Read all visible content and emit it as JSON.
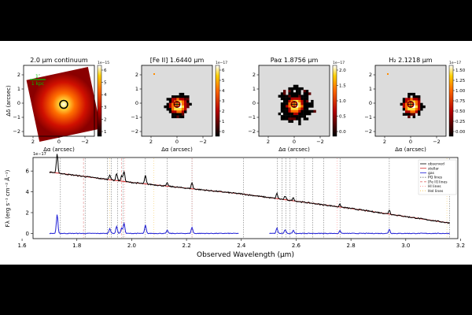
{
  "panels": [
    {
      "title": "2.0 μm continuum",
      "cbar_exp": "1e−15",
      "cbar_ticks": [
        "1",
        "2",
        "3",
        "4",
        "5",
        "6"
      ]
    },
    {
      "title": "[Fe II] 1.6440 μm",
      "cbar_exp": "1e−17",
      "cbar_ticks": [
        "0",
        "1",
        "2",
        "3",
        "4",
        "5",
        "6"
      ]
    },
    {
      "title": "Paα 1.8756 μm",
      "cbar_exp": "1e−17",
      "cbar_ticks": [
        "0.0",
        "0.5",
        "1.0",
        "1.5",
        "2.0"
      ]
    },
    {
      "title": "H₂ 2.1218 μm",
      "cbar_exp": "1e−17",
      "cbar_ticks": [
        "0.00",
        "0.25",
        "0.50",
        "0.75",
        "1.00",
        "1.25",
        "1.50"
      ]
    }
  ],
  "map_axes": {
    "xlabel": "Δα (arcsec)",
    "ylabel": "Δδ (arcsec)",
    "xticks": [
      "2",
      "0",
      "−2"
    ],
    "yticks": [
      "2",
      "1",
      "0",
      "−1",
      "−2"
    ]
  },
  "scalebar": {
    "top": "1″",
    "bottom": "1 kpc"
  },
  "chart_data": {
    "type": "line",
    "xlabel": "Observed Wavelength (μm)",
    "ylabel": "Fλ (erg s⁻¹ cm⁻² Å⁻¹)",
    "y_exponent": "1e−17",
    "xlim": [
      1.64,
      3.19
    ],
    "ylim": [
      -0.5,
      7.3
    ],
    "xticks": [
      "1.6",
      "1.8",
      "2.0",
      "2.2",
      "2.4",
      "2.6",
      "2.8",
      "3.0",
      "3.2"
    ],
    "yticks": [
      "0",
      "2",
      "4",
      "6"
    ],
    "legend": [
      "observed",
      "stellar",
      "gas",
      "PQ lines",
      "[Fe II] lines",
      "HI lines",
      "HeI lines"
    ],
    "series": [
      {
        "name": "observed",
        "color": "#000000"
      },
      {
        "name": "stellar",
        "color": "#d62728"
      },
      {
        "name": "gas",
        "color": "#1f1fd6"
      }
    ],
    "stellar_continuum": {
      "x": [
        1.7,
        2.0,
        2.4,
        2.8,
        3.16
      ],
      "y": [
        5.9,
        4.9,
        3.8,
        2.4,
        1.0
      ]
    },
    "gap": [
      2.39,
      2.5
    ],
    "emission_lines": [
      {
        "x": 1.728,
        "amp": 1.8
      },
      {
        "x": 1.92,
        "amp": 0.5
      },
      {
        "x": 1.945,
        "amp": 0.7
      },
      {
        "x": 1.963,
        "amp": 0.5
      },
      {
        "x": 1.972,
        "amp": 1.0
      },
      {
        "x": 2.05,
        "amp": 0.8
      },
      {
        "x": 2.13,
        "amp": 0.3
      },
      {
        "x": 2.22,
        "amp": 0.6
      },
      {
        "x": 2.53,
        "amp": 0.5
      },
      {
        "x": 2.56,
        "amp": 0.35
      },
      {
        "x": 2.59,
        "amp": 0.3
      },
      {
        "x": 2.76,
        "amp": 0.25
      },
      {
        "x": 2.94,
        "amp": 0.4
      }
    ],
    "ref_lines": {
      "pq": [
        1.74,
        1.83,
        1.912,
        1.926,
        1.948,
        1.968,
        2.05,
        2.13,
        2.22,
        2.408,
        2.532,
        2.548,
        2.562,
        2.578,
        2.6,
        2.63,
        2.66,
        2.7,
        2.76,
        2.94,
        3.16
      ],
      "feii": [
        1.824,
        1.963
      ],
      "hi": [
        1.975,
        2.22,
        2.75
      ],
      "hei": [
        1.92,
        2.08,
        3.15
      ]
    }
  }
}
